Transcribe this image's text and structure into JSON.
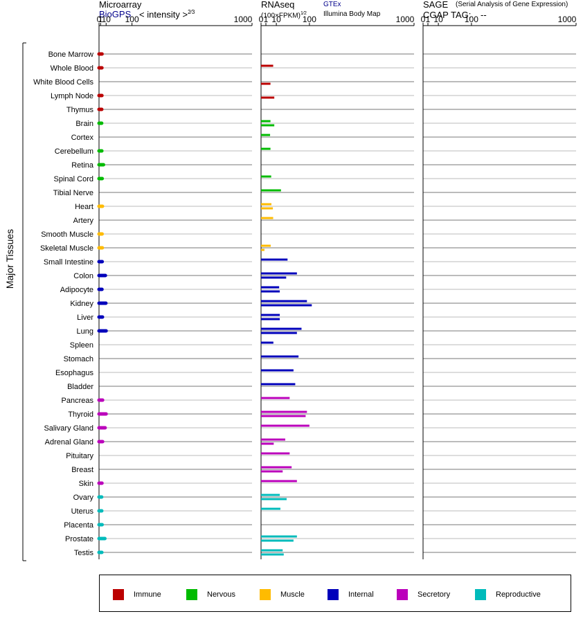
{
  "headers": {
    "microarray": "Microarray",
    "biogps": "BioGPS",
    "intensity_label": "< intensity >",
    "intensity_exp": "2⁄3",
    "rnaseq": "RNAseq",
    "gtex": "GTEx",
    "fpkm_label": "(100×FPKM)",
    "fpkm_exp": "1⁄2",
    "illumina": "Illumina Body Map",
    "sage": "SAGE",
    "sage_desc": "(Serial Analysis of Gene Expression)",
    "cgap_tag": "CGAP TAG:",
    "cgap_value": "--"
  },
  "y_axis_label": "Major Tissues",
  "chart_data": {
    "type": "bar",
    "orientation": "horizontal",
    "x_scale": "power",
    "tick_labels": [
      "0",
      "1",
      "10",
      "100",
      "1000"
    ],
    "tissues": [
      "Bone Marrow",
      "Whole Blood",
      "White Blood Cells",
      "Lymph Node",
      "Thymus",
      "Brain",
      "Cortex",
      "Cerebellum",
      "Retina",
      "Spinal Cord",
      "Tibial Nerve",
      "Heart",
      "Artery",
      "Smooth Muscle",
      "Skeletal Muscle",
      "Small Intestine",
      "Colon",
      "Adipocyte",
      "Kidney",
      "Liver",
      "Lung",
      "Spleen",
      "Stomach",
      "Esophagus",
      "Bladder",
      "Pancreas",
      "Thyroid",
      "Salivary Gland",
      "Adrenal Gland",
      "Pituitary",
      "Breast",
      "Skin",
      "Ovary",
      "Uterus",
      "Placenta",
      "Prostate",
      "Testis"
    ],
    "groups": [
      "immune",
      "immune",
      "immune",
      "immune",
      "immune",
      "nervous",
      "nervous",
      "nervous",
      "nervous",
      "nervous",
      "nervous",
      "muscle",
      "muscle",
      "muscle",
      "muscle",
      "internal",
      "internal",
      "internal",
      "internal",
      "internal",
      "internal",
      "internal",
      "internal",
      "internal",
      "internal",
      "secretory",
      "secretory",
      "secretory",
      "secretory",
      "secretory",
      "secretory",
      "secretory",
      "reproductive",
      "reproductive",
      "reproductive",
      "reproductive",
      "reproductive"
    ],
    "group_colors": {
      "immune": "#bb0000",
      "nervous": "#00bb00",
      "muscle": "#ffbb00",
      "internal": "#0000bb",
      "secretory": "#bb00bb",
      "reproductive": "#00bbbb"
    },
    "microarray": [
      2.8,
      2.6,
      null,
      2.6,
      2.4,
      2.3,
      null,
      2.5,
      5,
      3,
      null,
      3.4,
      null,
      2.9,
      3.2,
      3,
      8.5,
      2.7,
      9.5,
      3.4,
      10,
      null,
      null,
      null,
      null,
      3.6,
      10,
      8,
      3.6,
      null,
      null,
      2.7,
      2.3,
      2.4,
      2.9,
      7.5,
      2.5
    ],
    "rnaseq": [
      [],
      [
        6.3
      ],
      [
        null,
        3.8
      ],
      [
        null,
        7.5
      ],
      [],
      [
        3.8,
        7.5
      ],
      [
        3.5
      ],
      [
        3.8
      ],
      [],
      [
        4.4
      ],
      [
        17
      ],
      [
        4.6,
        6
      ],
      [
        6.3
      ],
      [],
      [
        4,
        0.5
      ],
      [
        30
      ],
      [
        55,
        27
      ],
      [
        14,
        15
      ],
      [
        90,
        110
      ],
      [
        15,
        15
      ],
      [
        70,
        55
      ],
      [
        6.5
      ],
      [
        60
      ],
      [
        45
      ],
      [
        50
      ],
      [
        35
      ],
      [
        90,
        85
      ],
      [
        100
      ],
      [
        25,
        6.9
      ],
      [
        35
      ],
      [
        40,
        20
      ],
      [
        55
      ],
      [
        15,
        28
      ],
      [
        16
      ],
      [],
      [
        55,
        45
      ],
      [
        20,
        22
      ]
    ],
    "sage": [],
    "legend": [
      {
        "key": "immune",
        "label": "Immune"
      },
      {
        "key": "nervous",
        "label": "Nervous"
      },
      {
        "key": "muscle",
        "label": "Muscle"
      },
      {
        "key": "internal",
        "label": "Internal"
      },
      {
        "key": "secretory",
        "label": "Secretory"
      },
      {
        "key": "reproductive",
        "label": "Reproductive"
      }
    ]
  }
}
